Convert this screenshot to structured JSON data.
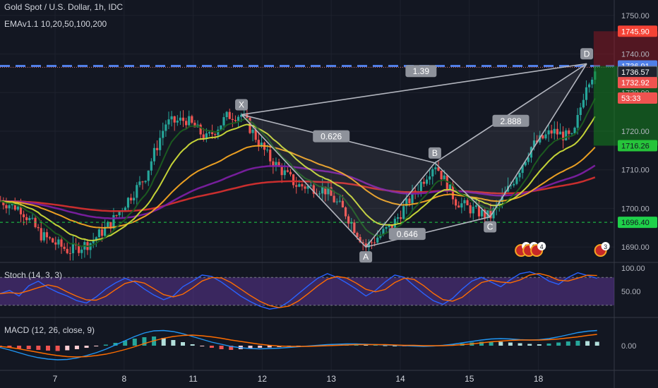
{
  "header": {
    "symbol_title": "Gold Spot / U.S. Dollar, 1h, IDC",
    "ema_label": "EMAv1.1 10,20,50,100,200"
  },
  "indicators": {
    "stoch_label": "Stoch (14, 3, 3)",
    "macd_label": "MACD (12, 26, close, 9)"
  },
  "colors": {
    "background": "#131722",
    "grid": "#1e222d",
    "up": "#26a69a",
    "down": "#ef5350",
    "ema10": "#1b5e20",
    "ema20": "#cddc39",
    "ema50": "#f5a623",
    "ema100": "#7b1fa2",
    "ema200": "#d32f2f",
    "stoch_k": "#2962ff",
    "stoch_d": "#ff6d00",
    "stoch_band": "#4a2775",
    "macd_line": "#2196f3",
    "signal_line": "#ff6d00",
    "resistance_line": "#4f7fe8",
    "support_line": "#1fd14a"
  },
  "chart_data": {
    "type": "candlestick",
    "instrument": "XAUUSD",
    "timeframe": "1h",
    "x_tick_labels": [
      "7",
      "8",
      "11",
      "12",
      "13",
      "14",
      "15",
      "18"
    ],
    "y_tick_labels": [
      "1750.00",
      "1740.00",
      "1730.00",
      "1720.00",
      "1710.00",
      "1700.00",
      "1690.00"
    ],
    "ylim": [
      1686,
      1754
    ],
    "price_tags": [
      {
        "value": "1745.90",
        "style": "stop"
      },
      {
        "value": "1736.91",
        "style": "line"
      },
      {
        "value": "1736.57",
        "style": "last"
      },
      {
        "value": "1732.92",
        "style": "price"
      },
      {
        "value": "53:33",
        "style": "timer"
      },
      {
        "value": "1716.26",
        "style": "target"
      },
      {
        "value": "1696.40",
        "style": "support"
      }
    ],
    "horizontal_lines": [
      {
        "value": 1736.9,
        "style": "dashed-blue"
      },
      {
        "value": 1736.57,
        "style": "dotted-red"
      },
      {
        "value": 1696.4,
        "style": "dashed-green"
      }
    ],
    "harmonic_points": [
      {
        "label": "X",
        "x": 2.7,
        "y": 1724.3
      },
      {
        "label": "A",
        "x": 4.5,
        "y": 1690.0
      },
      {
        "label": "B",
        "x": 5.5,
        "y": 1711.8
      },
      {
        "label": "C",
        "x": 6.3,
        "y": 1697.8
      },
      {
        "label": "D",
        "x": 7.7,
        "y": 1737.5
      }
    ],
    "ratios": [
      {
        "value": "1.39",
        "x": 5.3,
        "y": 1735.5
      },
      {
        "value": "0.626",
        "x": 4.0,
        "y": 1718.6
      },
      {
        "value": "2.888",
        "x": 6.6,
        "y": 1722.6
      },
      {
        "value": "0.646",
        "x": 5.1,
        "y": 1693.3
      }
    ],
    "position": {
      "stop": 1745.9,
      "entry": 1736.9,
      "target": 1716.26,
      "x_start": 7.8,
      "x_end": 8.9
    },
    "events": [
      "6",
      "2",
      "4",
      "3"
    ],
    "stoch": {
      "label": "Stoch (14, 3, 3)",
      "tick_labels": [
        "100.00",
        "50.00"
      ],
      "band": [
        20,
        80
      ],
      "k": [
        45,
        52,
        40,
        62,
        72,
        58,
        48,
        40,
        30,
        25,
        38,
        55,
        68,
        78,
        70,
        55,
        42,
        32,
        40,
        60,
        72,
        85,
        82,
        70,
        55,
        40,
        28,
        18,
        12,
        15,
        28,
        45,
        62,
        78,
        88,
        80,
        68,
        55,
        40,
        52,
        70,
        85,
        80,
        62,
        45,
        30,
        22,
        35,
        55,
        72,
        80,
        70,
        60,
        75,
        88,
        92,
        85,
        72,
        65,
        80,
        90,
        84,
        78
      ]
    },
    "macd": {
      "label": "MACD (12, 26, close, 9)",
      "tick_labels": [
        "0.00"
      ],
      "hist": [
        -0.4,
        -0.6,
        -0.8,
        -1.0,
        -1.2,
        -1.4,
        -1.5,
        -1.3,
        -1.0,
        -0.6,
        -0.2,
        0.3,
        0.8,
        1.4,
        2.0,
        2.4,
        2.6,
        2.2,
        1.6,
        1.0,
        0.4,
        -0.2,
        -0.6,
        -1.0,
        -1.2,
        -1.0,
        -0.8,
        -0.6,
        -0.5,
        -0.4,
        -0.3,
        -0.2,
        -0.1,
        0.0,
        0.1,
        0.2,
        0.3,
        0.3,
        0.2,
        0.2,
        0.1,
        0.0,
        -0.1,
        -0.2,
        -0.2,
        -0.1,
        0.1,
        0.3,
        0.6,
        0.9,
        1.1,
        1.2,
        1.1,
        0.9,
        0.7,
        0.5,
        0.4,
        0.6,
        0.9,
        1.2,
        1.4,
        1.3,
        1.1
      ],
      "macd_line": [
        -0.5,
        -1.2,
        -2.0,
        -2.8,
        -3.4,
        -3.8,
        -4.0,
        -3.9,
        -3.5,
        -2.8,
        -2.0,
        -1.0,
        0.2,
        1.4,
        2.6,
        3.6,
        4.2,
        4.3,
        4.0,
        3.4,
        2.6,
        1.8,
        1.0,
        0.4,
        -0.2,
        -0.6,
        -0.8,
        -0.9,
        -0.8,
        -0.7,
        -0.5,
        -0.3,
        -0.1,
        0.1,
        0.3,
        0.4,
        0.5,
        0.5,
        0.4,
        0.3,
        0.2,
        0.1,
        0.0,
        -0.1,
        -0.2,
        -0.1,
        0.1,
        0.4,
        0.8,
        1.2,
        1.6,
        1.9,
        2.0,
        1.9,
        1.7,
        1.6,
        1.7,
        2.0,
        2.5,
        3.1,
        3.7,
        4.1,
        4.3
      ],
      "signal_line": [
        -0.2,
        -0.5,
        -0.9,
        -1.4,
        -1.9,
        -2.4,
        -2.8,
        -3.1,
        -3.2,
        -3.1,
        -2.8,
        -2.4,
        -1.8,
        -1.1,
        -0.3,
        0.6,
        1.4,
        2.1,
        2.6,
        2.9,
        3.0,
        2.8,
        2.5,
        2.1,
        1.6,
        1.2,
        0.8,
        0.4,
        0.1,
        -0.1,
        -0.2,
        -0.2,
        -0.2,
        -0.1,
        0.0,
        0.1,
        0.2,
        0.3,
        0.3,
        0.3,
        0.3,
        0.2,
        0.1,
        0.1,
        0.0,
        0.0,
        0.0,
        0.1,
        0.3,
        0.5,
        0.8,
        1.1,
        1.3,
        1.5,
        1.6,
        1.6,
        1.6,
        1.7,
        1.9,
        2.2,
        2.5,
        2.9,
        3.2
      ]
    }
  }
}
